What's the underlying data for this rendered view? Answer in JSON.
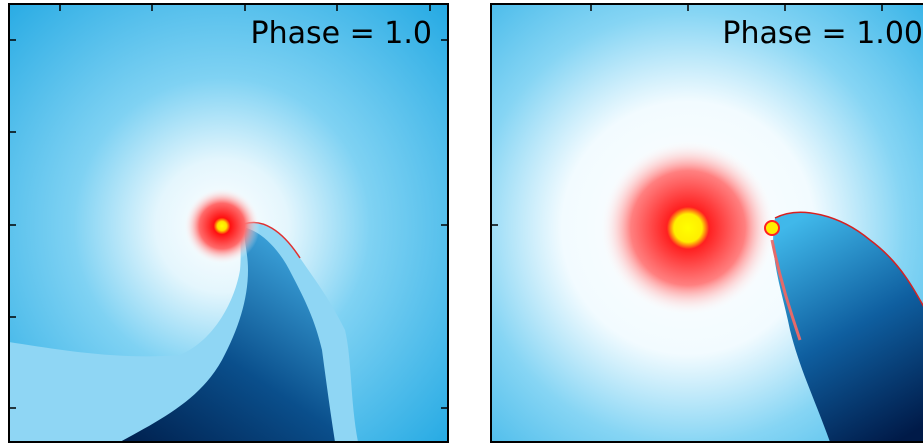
{
  "panels": [
    {
      "label": "Phase = 1.0"
    },
    {
      "label": "Phase = 1.00"
    }
  ]
}
